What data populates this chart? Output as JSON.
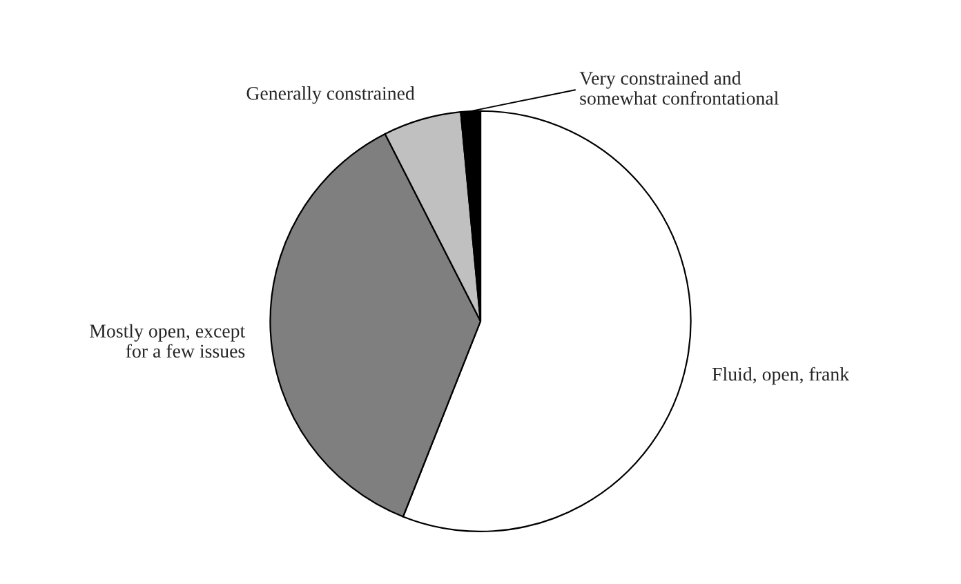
{
  "chart_data": {
    "type": "pie",
    "categories": [
      "Fluid, open, frank",
      "Mostly open, except\nfor a few issues",
      "Generally constrained",
      "Very constrained and\nsomewhat confrontational"
    ],
    "values": [
      56,
      36.5,
      6,
      1.5
    ],
    "colors": [
      "#ffffff",
      "#7f7f7f",
      "#c0c0c0",
      "#000000"
    ]
  }
}
